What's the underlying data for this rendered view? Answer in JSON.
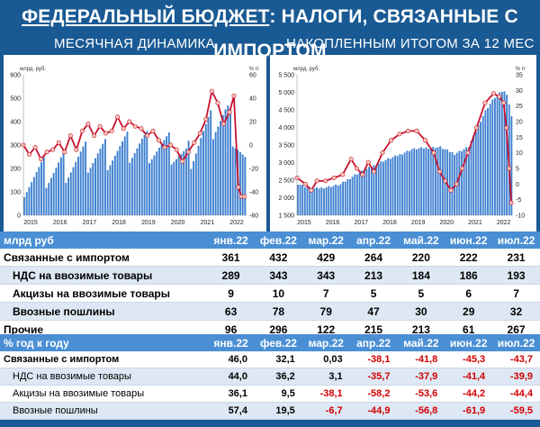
{
  "title": {
    "prefix": "ФЕДЕРАЛЬНЫЙ БЮДЖЕТ",
    "rest": ": НАЛОГИ, СВЯЗАННЫЕ С ИМПОРТОМ"
  },
  "subtitles": {
    "left": "МЕСЯЧНАЯ ДИНАМИКА",
    "right": "НАКОПЛЕННЫМ ИТОГОМ ЗА 12 МЕС"
  },
  "colors": {
    "bar": "#3d7fd0",
    "line": "#c8102e",
    "marker_fill": "#f6c9b8",
    "header": "#4a8fd4",
    "background": "#1a5a94",
    "negative": "#d10000"
  },
  "chart_data": [
    {
      "type": "bar",
      "ylabel": "млрд. руб.",
      "y2label": "% гг",
      "ylim": [
        0,
        600
      ],
      "yticks": [
        "0",
        "100",
        "200",
        "300",
        "400",
        "500",
        "600"
      ],
      "y2lim": [
        -60,
        60
      ],
      "y2ticks": [
        "-60",
        "-40",
        "-20",
        "0",
        "20",
        "40",
        "60"
      ],
      "x_ticks": [
        "2015",
        "2016",
        "2017",
        "2018",
        "2019",
        "2020",
        "2021",
        "2022"
      ],
      "x_start": 2015.0,
      "x_end": 2022.58,
      "bar_start": [
        2015.0,
        150
      ],
      "bar_end": [
        2022.5,
        231
      ],
      "bars_max_month": [
        2021.8,
        430
      ],
      "line_points": [
        [
          2015.0,
          0
        ],
        [
          2015.2,
          -8
        ],
        [
          2015.4,
          -2
        ],
        [
          2015.6,
          -12
        ],
        [
          2015.8,
          -6
        ],
        [
          2016.0,
          -4
        ],
        [
          2016.2,
          2
        ],
        [
          2016.4,
          -6
        ],
        [
          2016.6,
          8
        ],
        [
          2016.8,
          -4
        ],
        [
          2017.0,
          12
        ],
        [
          2017.2,
          18
        ],
        [
          2017.4,
          8
        ],
        [
          2017.6,
          16
        ],
        [
          2017.8,
          10
        ],
        [
          2018.0,
          12
        ],
        [
          2018.2,
          24
        ],
        [
          2018.4,
          14
        ],
        [
          2018.6,
          20
        ],
        [
          2018.8,
          16
        ],
        [
          2019.0,
          14
        ],
        [
          2019.2,
          8
        ],
        [
          2019.4,
          12
        ],
        [
          2019.6,
          4
        ],
        [
          2019.8,
          -2
        ],
        [
          2020.0,
          0
        ],
        [
          2020.2,
          -4
        ],
        [
          2020.4,
          -14
        ],
        [
          2020.6,
          -6
        ],
        [
          2020.8,
          2
        ],
        [
          2021.0,
          10
        ],
        [
          2021.2,
          22
        ],
        [
          2021.4,
          46
        ],
        [
          2021.6,
          36
        ],
        [
          2021.8,
          18
        ],
        [
          2022.0,
          28
        ],
        [
          2022.15,
          42
        ],
        [
          2022.3,
          -36
        ],
        [
          2022.4,
          -44
        ],
        [
          2022.5,
          -44
        ]
      ],
      "series": [
        {
          "name": "",
          "values_ref": "bars"
        },
        {
          "name": "",
          "values_ref": "line_points"
        }
      ]
    },
    {
      "type": "bar",
      "ylim": [
        1500,
        5500
      ],
      "yticks": [
        "1 500",
        "2 000",
        "2 500",
        "3 000",
        "3 500",
        "4 000",
        "4 500",
        "5 000",
        "5 500"
      ],
      "ylabel": "млрд. руб.",
      "y2label": "% гг",
      "y2lim": [
        -10,
        35
      ],
      "y2ticks": [
        "-10",
        "-5",
        "0",
        "5",
        "10",
        "15",
        "20",
        "25",
        "30",
        "35"
      ],
      "x_ticks": [
        "2015",
        "2016",
        "2017",
        "2018",
        "2019",
        "2020",
        "2021",
        "2022"
      ],
      "x_start": 2015.0,
      "x_end": 2022.58,
      "bar_points": [
        [
          2015.0,
          2400
        ],
        [
          2015.5,
          2250
        ],
        [
          2016.0,
          2300
        ],
        [
          2016.5,
          2380
        ],
        [
          2017.0,
          2650
        ],
        [
          2017.5,
          2850
        ],
        [
          2018.0,
          3050
        ],
        [
          2018.5,
          3200
        ],
        [
          2019.0,
          3380
        ],
        [
          2019.5,
          3420
        ],
        [
          2020.0,
          3440
        ],
        [
          2020.5,
          3250
        ],
        [
          2021.0,
          3450
        ],
        [
          2021.3,
          4000
        ],
        [
          2021.6,
          4500
        ],
        [
          2021.9,
          4850
        ],
        [
          2022.2,
          5050
        ],
        [
          2022.35,
          4950
        ],
        [
          2022.5,
          4300
        ]
      ],
      "line_points": [
        [
          2015.0,
          2
        ],
        [
          2015.3,
          0
        ],
        [
          2015.5,
          -2
        ],
        [
          2015.7,
          1
        ],
        [
          2016.0,
          1
        ],
        [
          2016.3,
          2
        ],
        [
          2016.6,
          3
        ],
        [
          2016.9,
          8
        ],
        [
          2017.1,
          5
        ],
        [
          2017.3,
          3
        ],
        [
          2017.5,
          7
        ],
        [
          2017.7,
          4
        ],
        [
          2018.0,
          10
        ],
        [
          2018.3,
          14
        ],
        [
          2018.6,
          16
        ],
        [
          2018.9,
          17
        ],
        [
          2019.2,
          17
        ],
        [
          2019.5,
          14
        ],
        [
          2019.8,
          10
        ],
        [
          2020.0,
          4
        ],
        [
          2020.2,
          1
        ],
        [
          2020.4,
          -2
        ],
        [
          2020.6,
          0
        ],
        [
          2020.8,
          5
        ],
        [
          2021.0,
          10
        ],
        [
          2021.3,
          18
        ],
        [
          2021.6,
          26
        ],
        [
          2021.9,
          29
        ],
        [
          2022.1,
          28
        ],
        [
          2022.25,
          26
        ],
        [
          2022.35,
          18
        ],
        [
          2022.45,
          5
        ],
        [
          2022.52,
          -6
        ]
      ],
      "series": [
        {
          "name": "",
          "values_ref": "bar_points"
        },
        {
          "name": "",
          "values_ref": "line_points"
        }
      ]
    }
  ],
  "table1": {
    "header": {
      "label": "млрд руб",
      "months": [
        "янв.22",
        "фев.22",
        "мар.22",
        "апр.22",
        "май.22",
        "июн.22",
        "июл.22"
      ]
    },
    "rows": [
      {
        "label": "Связанные с импортом",
        "values": [
          "361",
          "432",
          "429",
          "264",
          "220",
          "222",
          "231"
        ],
        "indent": false
      },
      {
        "label": "НДС на ввозимые товары",
        "values": [
          "289",
          "343",
          "343",
          "213",
          "184",
          "186",
          "193"
        ],
        "indent": true
      },
      {
        "label": "Акцизы на ввозимые товары",
        "values": [
          "9",
          "10",
          "7",
          "5",
          "5",
          "6",
          "7"
        ],
        "indent": true
      },
      {
        "label": "Ввозные пошлины",
        "values": [
          "63",
          "78",
          "79",
          "47",
          "30",
          "29",
          "32"
        ],
        "indent": true
      },
      {
        "label": "Прочие",
        "values": [
          "96",
          "296",
          "122",
          "215",
          "213",
          "61",
          "267"
        ],
        "indent": false
      }
    ]
  },
  "table2": {
    "header": {
      "label": "% год к году",
      "months": [
        "янв.22",
        "фев.22",
        "мар.22",
        "апр.22",
        "май.22",
        "июн.22",
        "июл.22"
      ]
    },
    "rows": [
      {
        "label": "Связанные с импортом",
        "values": [
          "46,0",
          "32,1",
          "0,03",
          "-38,1",
          "-41,8",
          "-45,3",
          "-43,7"
        ],
        "indent": false
      },
      {
        "label": "НДС на ввозимые товары",
        "values": [
          "44,0",
          "36,2",
          "3,1",
          "-35,7",
          "-37,9",
          "-41,4",
          "-39,9"
        ],
        "indent": true
      },
      {
        "label": "Акцизы на ввозимые товары",
        "values": [
          "36,1",
          "9,5",
          "-38,1",
          "-58,2",
          "-53,6",
          "-44,2",
          "-44,4"
        ],
        "indent": true
      },
      {
        "label": "Ввозные пошлины",
        "values": [
          "57,4",
          "19,5",
          "-6,7",
          "-44,9",
          "-56,8",
          "-61,9",
          "-59,5"
        ],
        "indent": true
      }
    ]
  }
}
